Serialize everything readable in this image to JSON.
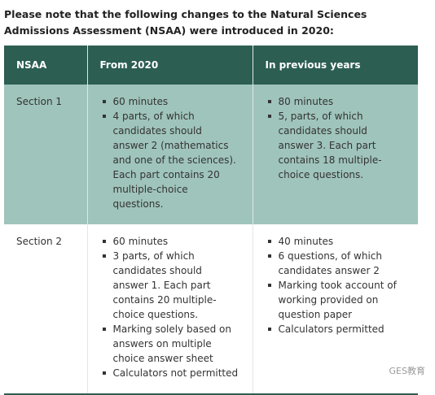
{
  "heading": "Please note that the following changes to the Natural Sciences Admissions Assessment (NSAA) were introduced in 2020:",
  "table": {
    "header": [
      "NSAA",
      "From 2020",
      "In previous years"
    ],
    "rows": [
      {
        "label": "Section 1",
        "from_2020": [
          "60 minutes",
          "4 parts, of which candidates should answer 2 (mathematics and one of the sciences). Each part contains 20 multiple-choice questions."
        ],
        "previous": [
          "80 minutes",
          "5, parts, of which candidates should answer 3. Each part contains 18 multiple-choice questions."
        ]
      },
      {
        "label": "Section 2",
        "from_2020": [
          "60 minutes",
          "3 parts, of which candidates should answer 1. Each part contains 20 multiple-choice questions.",
          "Marking solely based on answers on multiple choice answer sheet",
          "Calculators not permitted"
        ],
        "previous": [
          "40 minutes",
          "6 questions, of which candidates answer 2",
          "Marking took account of working provided on question paper",
          "Calculators permitted"
        ]
      }
    ]
  },
  "watermark": "GES教育"
}
